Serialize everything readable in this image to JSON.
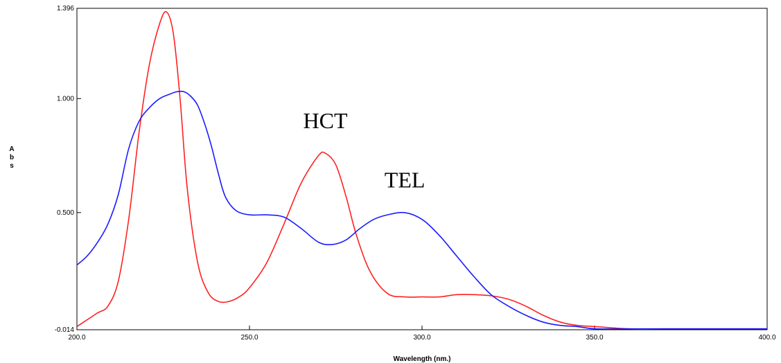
{
  "chart_data": {
    "type": "line",
    "xlabel": "Wavelength (nm.)",
    "ylabel": "Abs",
    "xlim": [
      200,
      400
    ],
    "ylim": [
      -0.014,
      1.396
    ],
    "x_ticks": [
      {
        "value": 200,
        "label": "200.0"
      },
      {
        "value": 250,
        "label": "250.0"
      },
      {
        "value": 300,
        "label": "300.0"
      },
      {
        "value": 350,
        "label": "350.0"
      },
      {
        "value": 400,
        "label": "400.0"
      }
    ],
    "y_ticks": [
      {
        "value": -0.014,
        "label": "-0.014"
      },
      {
        "value": 0.5,
        "label": "0.500"
      },
      {
        "value": 1.0,
        "label": "1.000"
      },
      {
        "value": 1.396,
        "label": "1.396"
      }
    ],
    "grid": false,
    "annotations": [
      {
        "text": "HCT",
        "x": 272,
        "y": 0.87
      },
      {
        "text": "TEL",
        "x": 295,
        "y": 0.61
      }
    ],
    "series": [
      {
        "color": "#ff2020",
        "x": [
          200,
          203,
          206,
          209,
          212,
          215,
          218,
          221,
          224,
          226,
          228,
          230,
          232,
          235,
          238,
          241,
          244,
          247,
          250,
          255,
          260,
          265,
          270,
          272,
          275,
          278,
          281,
          285,
          290,
          295,
          300,
          305,
          310,
          315,
          320,
          325,
          330,
          335,
          340,
          345,
          350,
          360,
          370,
          380,
          390,
          400
        ],
        "y": [
          0.0,
          0.03,
          0.06,
          0.09,
          0.2,
          0.47,
          0.85,
          1.15,
          1.33,
          1.38,
          1.28,
          0.98,
          0.6,
          0.28,
          0.15,
          0.11,
          0.11,
          0.13,
          0.17,
          0.28,
          0.45,
          0.63,
          0.75,
          0.76,
          0.71,
          0.57,
          0.4,
          0.24,
          0.145,
          0.13,
          0.13,
          0.13,
          0.14,
          0.14,
          0.135,
          0.12,
          0.09,
          0.05,
          0.02,
          0.005,
          0.0,
          -0.01,
          -0.01,
          -0.01,
          -0.01,
          -0.01
        ]
      },
      {
        "color": "#1a1aff",
        "x": [
          200,
          203,
          206,
          209,
          212,
          215,
          218,
          221,
          224,
          227,
          229,
          231,
          233,
          235,
          237,
          239,
          241,
          243,
          246,
          250,
          255,
          260,
          265,
          270,
          274,
          278,
          282,
          286,
          290,
          295,
          300,
          305,
          310,
          315,
          320,
          325,
          330,
          335,
          340,
          345,
          350,
          360,
          370,
          380,
          390,
          400
        ],
        "y": [
          0.27,
          0.31,
          0.37,
          0.45,
          0.58,
          0.78,
          0.9,
          0.96,
          1.0,
          1.02,
          1.03,
          1.03,
          1.01,
          0.97,
          0.89,
          0.79,
          0.67,
          0.57,
          0.51,
          0.49,
          0.49,
          0.48,
          0.43,
          0.37,
          0.36,
          0.38,
          0.43,
          0.47,
          0.49,
          0.5,
          0.47,
          0.4,
          0.31,
          0.22,
          0.14,
          0.09,
          0.05,
          0.02,
          0.005,
          0.0,
          -0.01,
          -0.01,
          -0.01,
          -0.01,
          -0.01,
          -0.01
        ]
      }
    ]
  }
}
